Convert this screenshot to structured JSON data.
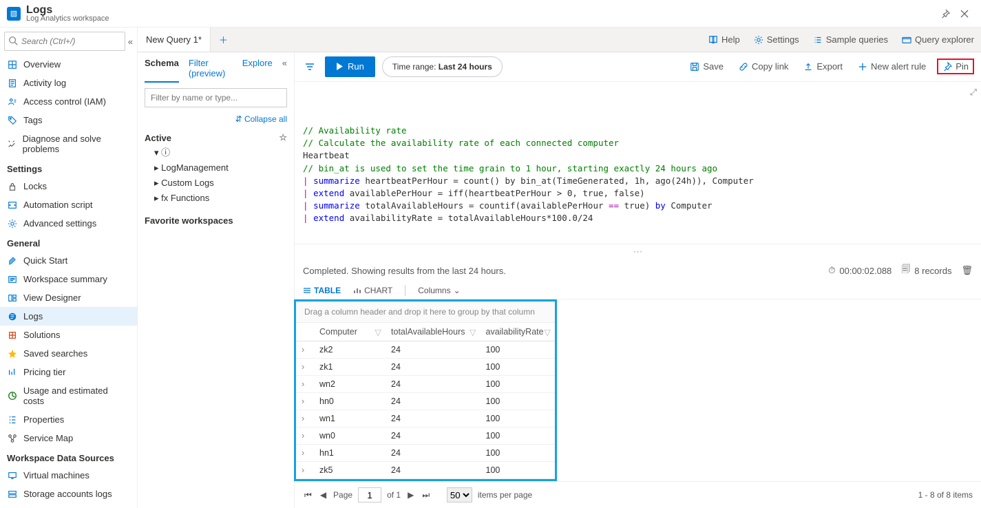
{
  "title": {
    "main": "Logs",
    "sub": "Log Analytics workspace"
  },
  "search_placeholder": "Search (Ctrl+/)",
  "nav": {
    "top": [
      {
        "label": "Overview",
        "icon": "overview"
      },
      {
        "label": "Activity log",
        "icon": "activity"
      },
      {
        "label": "Access control (IAM)",
        "icon": "iam"
      },
      {
        "label": "Tags",
        "icon": "tags"
      },
      {
        "label": "Diagnose and solve problems",
        "icon": "diagnose"
      }
    ],
    "sections": [
      {
        "title": "Settings",
        "items": [
          {
            "label": "Locks",
            "icon": "lock"
          },
          {
            "label": "Automation script",
            "icon": "script"
          },
          {
            "label": "Advanced settings",
            "icon": "gear"
          }
        ]
      },
      {
        "title": "General",
        "items": [
          {
            "label": "Quick Start",
            "icon": "quickstart"
          },
          {
            "label": "Workspace summary",
            "icon": "summary"
          },
          {
            "label": "View Designer",
            "icon": "designer"
          },
          {
            "label": "Logs",
            "icon": "logs",
            "selected": true
          },
          {
            "label": "Solutions",
            "icon": "solutions"
          },
          {
            "label": "Saved searches",
            "icon": "star"
          },
          {
            "label": "Pricing tier",
            "icon": "pricing"
          },
          {
            "label": "Usage and estimated costs",
            "icon": "usage"
          },
          {
            "label": "Properties",
            "icon": "props"
          },
          {
            "label": "Service Map",
            "icon": "map"
          }
        ]
      },
      {
        "title": "Workspace Data Sources",
        "items": [
          {
            "label": "Virtual machines",
            "icon": "vm"
          },
          {
            "label": "Storage accounts logs",
            "icon": "storage"
          }
        ]
      }
    ]
  },
  "tabs": {
    "first": "New Query 1*"
  },
  "topbar_actions": {
    "help": "Help",
    "settings": "Settings",
    "samples": "Sample queries",
    "explorer": "Query explorer"
  },
  "toolbar": {
    "run": "Run",
    "timerange_label": "Time range:",
    "timerange_value": "Last 24 hours",
    "save": "Save",
    "copy": "Copy link",
    "export": "Export",
    "newalert": "New alert rule",
    "pin": "Pin"
  },
  "schema": {
    "tabs": {
      "schema": "Schema",
      "filter": "Filter (preview)",
      "explore": "Explore"
    },
    "filter_placeholder": "Filter by name or type...",
    "collapse_all": "Collapse all",
    "active_label": "Active",
    "favorite_label": "Favorite workspaces",
    "tree": [
      "LogManagement",
      "Custom Logs",
      "Functions"
    ],
    "tree_prefix": [
      "▸ ",
      "▸ ",
      "▸ fx "
    ]
  },
  "editor": {
    "lines": [
      {
        "t": "// Availability rate",
        "cls": "c-comment"
      },
      {
        "t": "// Calculate the availability rate of each connected computer",
        "cls": "c-comment"
      },
      {
        "t": "Heartbeat",
        "cls": ""
      },
      {
        "t": "// bin_at is used to set the time grain to 1 hour, starting exactly 24 hours ago",
        "cls": "c-comment"
      },
      {
        "pipe": true,
        "kw": "summarize",
        "rest": " heartbeatPerHour = count() by bin_at(TimeGenerated, 1h, ago(24h)), Computer"
      },
      {
        "pipe": true,
        "kw": "extend",
        "rest": " availablePerHour = iff(heartbeatPerHour > 0, true, false)"
      },
      {
        "pipe": true,
        "kw": "summarize",
        "rest": " totalAvailableHours = countif(availablePerHour ",
        "op": "==",
        "rest2": " true) ",
        "kw2": "by",
        "rest3": " Computer"
      },
      {
        "pipe": true,
        "kw": "extend",
        "rest": " availabilityRate = totalAvailableHours*100.0/24"
      }
    ]
  },
  "results": {
    "status": "Completed. Showing results from the last 24 hours.",
    "duration": "00:00:02.088",
    "records": "8 records",
    "tabs": {
      "table": "TABLE",
      "chart": "CHART",
      "columns": "Columns"
    },
    "group_hint": "Drag a column header and drop it here to group by that column",
    "columns": [
      "Computer",
      "totalAvailableHours",
      "availabilityRate"
    ],
    "col_widths": [
      "110px",
      "140px",
      "110px"
    ],
    "rows": [
      [
        "zk2",
        "24",
        "100"
      ],
      [
        "zk1",
        "24",
        "100"
      ],
      [
        "wn2",
        "24",
        "100"
      ],
      [
        "hn0",
        "24",
        "100"
      ],
      [
        "wn1",
        "24",
        "100"
      ],
      [
        "wn0",
        "24",
        "100"
      ],
      [
        "hn1",
        "24",
        "100"
      ],
      [
        "zk5",
        "24",
        "100"
      ]
    ],
    "highlight_box_color": "#17a2e0"
  },
  "pager": {
    "page_label": "Page",
    "page": "1",
    "of_label": "of 1",
    "page_size": "50",
    "items_label": "items per page",
    "range": "1 - 8 of 8 items"
  },
  "colors": {
    "accent": "#0078d4",
    "highlight_border": "#17a2e0",
    "pin_highlight": "#e81123"
  }
}
